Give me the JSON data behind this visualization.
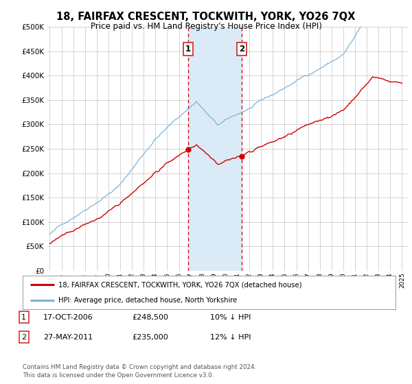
{
  "title": "18, FAIRFAX CRESCENT, TOCKWITH, YORK, YO26 7QX",
  "subtitle": "Price paid vs. HM Land Registry's House Price Index (HPI)",
  "ylim": [
    0,
    500000
  ],
  "yticks": [
    0,
    50000,
    100000,
    150000,
    200000,
    250000,
    300000,
    350000,
    400000,
    450000,
    500000
  ],
  "ytick_labels": [
    "£0",
    "£50K",
    "£100K",
    "£150K",
    "£200K",
    "£250K",
    "£300K",
    "£350K",
    "£400K",
    "£450K",
    "£500K"
  ],
  "t1_year": 2006.79,
  "t1_price": 248500,
  "t2_year": 2011.37,
  "t2_price": 235000,
  "legend_line1": "18, FAIRFAX CRESCENT, TOCKWITH, YORK, YO26 7QX (detached house)",
  "legend_line2": "HPI: Average price, detached house, North Yorkshire",
  "row1_num": "1",
  "row1_date": "17-OCT-2006",
  "row1_price": "£248,500",
  "row1_pct": "10% ↓ HPI",
  "row2_num": "2",
  "row2_date": "27-MAY-2011",
  "row2_price": "£235,000",
  "row2_pct": "12% ↓ HPI",
  "footer": "Contains HM Land Registry data © Crown copyright and database right 2024.\nThis data is licensed under the Open Government Licence v3.0.",
  "hpi_color": "#7ab3d9",
  "price_color": "#cc0000",
  "highlight_color": "#daeaf6",
  "vline_color": "#cc0000",
  "box_color": "#cc3333",
  "background_color": "#ffffff",
  "grid_color": "#cccccc",
  "num_months": 361,
  "start_year": 1995,
  "end_year": 2025
}
